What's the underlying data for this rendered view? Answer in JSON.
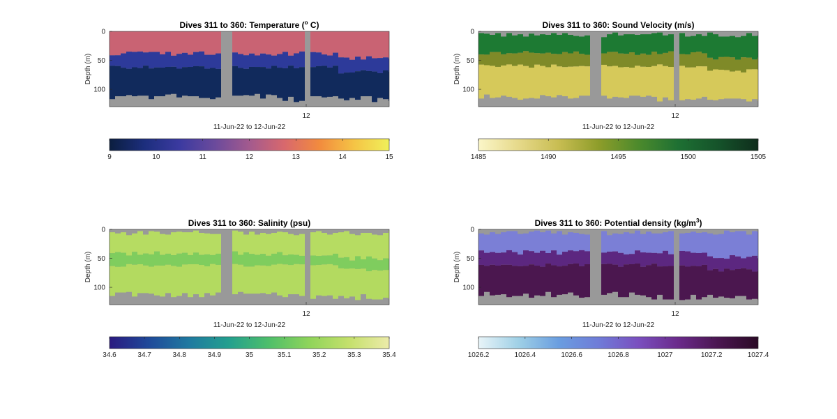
{
  "figure_background": "#ffffff",
  "gap_color": "#999999",
  "chart_data": [
    {
      "type": "heatmap",
      "title": "Dives 311 to 360: Temperature (",
      "title_sup": "o",
      "title_end": " C)",
      "ylabel": "Depth (m)",
      "xlabel": "11-Jun-22 to 12-Jun-22",
      "yticks": [
        0,
        50,
        100
      ],
      "ylim": [
        0,
        130
      ],
      "xticks": [
        "12"
      ],
      "colorbar": {
        "ticks": [
          "9",
          "10",
          "11",
          "12",
          "13",
          "14",
          "15"
        ],
        "range": [
          9,
          15
        ],
        "colors": [
          "#0b1e3f",
          "#1c2e7d",
          "#3b3aa0",
          "#6a4a9c",
          "#a35a8e",
          "#d8686d",
          "#f28b3e",
          "#f5c445",
          "#f0f05a"
        ]
      },
      "layers": [
        {
          "name": "surface",
          "color": "#c96373"
        },
        {
          "name": "thermocline",
          "color": "#2d3a9a"
        },
        {
          "name": "deep",
          "color": "#112a5c"
        }
      ],
      "interfaces_depth_m": [
        38,
        62
      ]
    },
    {
      "type": "heatmap",
      "title": "Dives 311 to 360: Sound Velocity (m/s)",
      "ylabel": "",
      "xlabel": "11-Jun-22 to 12-Jun-22",
      "yticks": [
        0,
        50,
        100
      ],
      "ylim": [
        0,
        130
      ],
      "xticks": [
        "12"
      ],
      "colorbar": {
        "ticks": [
          "1485",
          "1490",
          "1495",
          "1500",
          "1505"
        ],
        "range": [
          1485,
          1505
        ],
        "colors": [
          "#fbf6c8",
          "#e6d98a",
          "#c8bd52",
          "#8e9d2a",
          "#4c8a2c",
          "#1e7033",
          "#15532a",
          "#0f2d1c"
        ]
      },
      "layers": [
        {
          "name": "surface",
          "color": "#1d7a33"
        },
        {
          "name": "thermocline",
          "color": "#7f8a28"
        },
        {
          "name": "deep",
          "color": "#d6c95a"
        }
      ],
      "interfaces_depth_m": [
        38,
        60
      ]
    },
    {
      "type": "heatmap",
      "title": "Dives 311 to 360: Salinity (psu)",
      "ylabel": "Depth (m)",
      "xlabel": "11-Jun-22 to 12-Jun-22",
      "yticks": [
        0,
        50,
        100
      ],
      "ylim": [
        0,
        130
      ],
      "xticks": [
        "12"
      ],
      "colorbar": {
        "ticks": [
          "34.6",
          "34.7",
          "34.8",
          "34.9",
          "35",
          "35.1",
          "35.2",
          "35.3",
          "35.4"
        ],
        "range": [
          34.6,
          35.4
        ],
        "colors": [
          "#2a1a80",
          "#1f4a9a",
          "#1f7aa0",
          "#23a08e",
          "#4fbf6a",
          "#8fd45a",
          "#c5e06c",
          "#ecebaa"
        ]
      },
      "layers": [
        {
          "name": "surface",
          "color": "#b6dc62"
        },
        {
          "name": "thermocline",
          "color": "#7fcd5e"
        },
        {
          "name": "deep",
          "color": "#b3da60"
        }
      ],
      "interfaces_depth_m": [
        42,
        62
      ]
    },
    {
      "type": "heatmap",
      "title": "Dives 311 to 360: Potential density (kg/m",
      "title_sup": "3",
      "title_end": ")",
      "ylabel": "",
      "xlabel": "11-Jun-22 to 12-Jun-22",
      "yticks": [
        0,
        50,
        100
      ],
      "ylim": [
        0,
        130
      ],
      "xticks": [
        "12"
      ],
      "colorbar": {
        "ticks": [
          "1026.2",
          "1026.4",
          "1026.6",
          "1026.8",
          "1027",
          "1027.2",
          "1027.4"
        ],
        "range": [
          1026.2,
          1027.4
        ],
        "colors": [
          "#e8f4f8",
          "#9fd0e6",
          "#6a9ee0",
          "#6f7cd8",
          "#7a4fbf",
          "#6a2a8a",
          "#4a1650",
          "#2a0a25"
        ]
      },
      "layers": [
        {
          "name": "surface",
          "color": "#7b7fd6"
        },
        {
          "name": "thermocline",
          "color": "#5c2780"
        },
        {
          "name": "deep",
          "color": "#4b174f"
        }
      ],
      "interfaces_depth_m": [
        40,
        62
      ]
    }
  ]
}
